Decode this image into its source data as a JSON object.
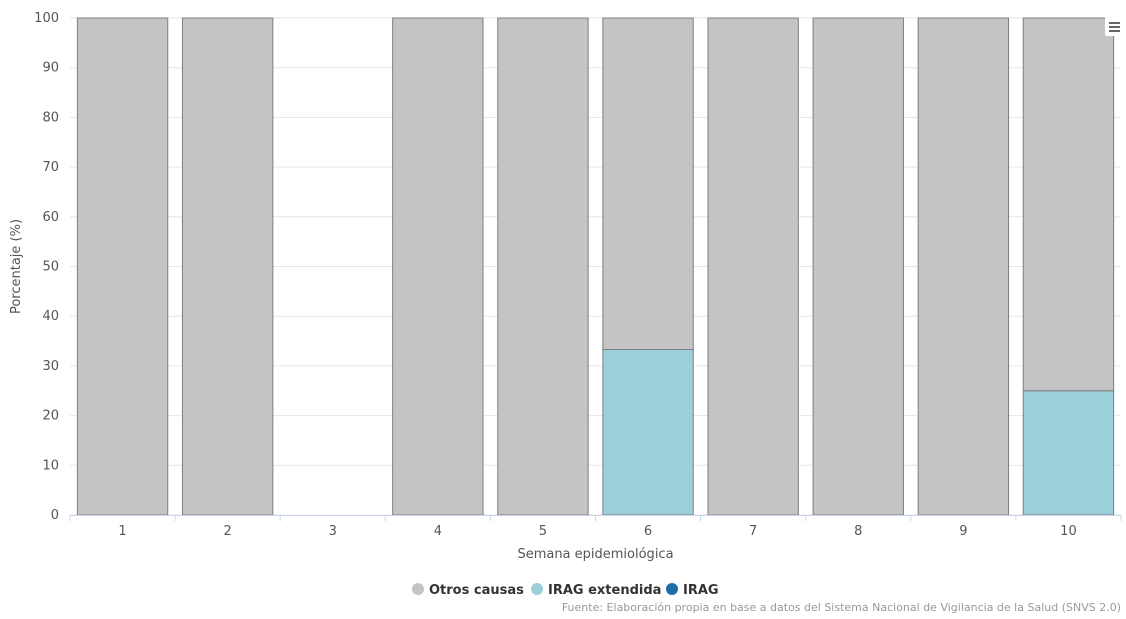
{
  "chart_data": {
    "type": "bar",
    "stacked": true,
    "stacking": "percent",
    "categories": [
      "1",
      "2",
      "3",
      "4",
      "5",
      "6",
      "7",
      "8",
      "9",
      "10"
    ],
    "series": [
      {
        "name": "Otros causas",
        "color": "#c4c4c4",
        "values": [
          100,
          100,
          0,
          100,
          100,
          66.7,
          100,
          100,
          100,
          75
        ]
      },
      {
        "name": "IRAG extendida",
        "color": "#9bcfda",
        "values": [
          0,
          0,
          0,
          0,
          0,
          33.3,
          0,
          0,
          0,
          25
        ]
      },
      {
        "name": "IRAG",
        "color": "#1f6ea8",
        "values": [
          0,
          0,
          0,
          0,
          0,
          0,
          0,
          0,
          0,
          0
        ]
      }
    ],
    "xlabel": "Semana epidemiológica",
    "ylabel": "Porcentaje (%)",
    "ylim": [
      0,
      100
    ],
    "yticks": [
      "0",
      "10",
      "20",
      "30",
      "40",
      "50",
      "60",
      "70",
      "80",
      "90",
      "100"
    ],
    "grid": true,
    "legend_position": "bottom-center"
  },
  "credits": "Fuente: Elaboración propia en base a datos del Sistema Nacional de Vigilancia de la Salud (SNVS 2.0)",
  "menu_icon": "hamburger-menu-icon"
}
